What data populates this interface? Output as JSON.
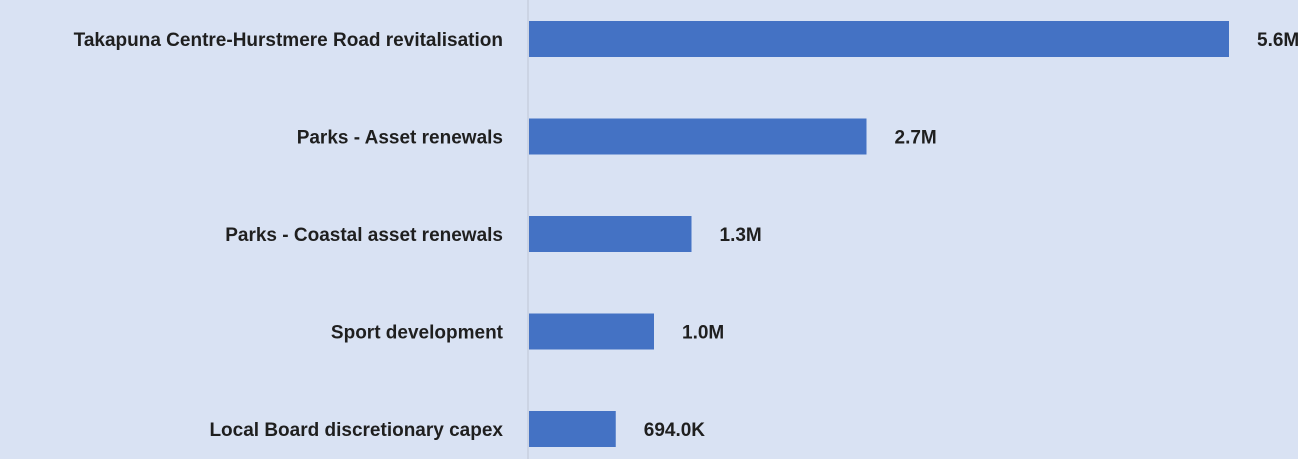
{
  "chart_data": {
    "type": "bar",
    "orientation": "horizontal",
    "title": "",
    "xlabel": "",
    "ylabel": "",
    "categories": [
      "Takapuna Centre-Hurstmere Road revitalisation",
      "Parks - Asset renewals",
      "Parks - Coastal asset renewals",
      "Sport development",
      "Local Board discretionary capex"
    ],
    "values": [
      5600000,
      2700000,
      1300000,
      1000000,
      694000
    ],
    "value_labels": [
      "5.6M",
      "2.7M",
      "1.3M",
      "1.0M",
      "694.0K"
    ],
    "xlim": [
      0,
      5600000
    ],
    "grid": false,
    "legend": "none",
    "colors": {
      "bar": "#4472c4",
      "background": "#d9e2f3",
      "axis": "#bfc7d5",
      "text": "#1f1f1f"
    }
  }
}
